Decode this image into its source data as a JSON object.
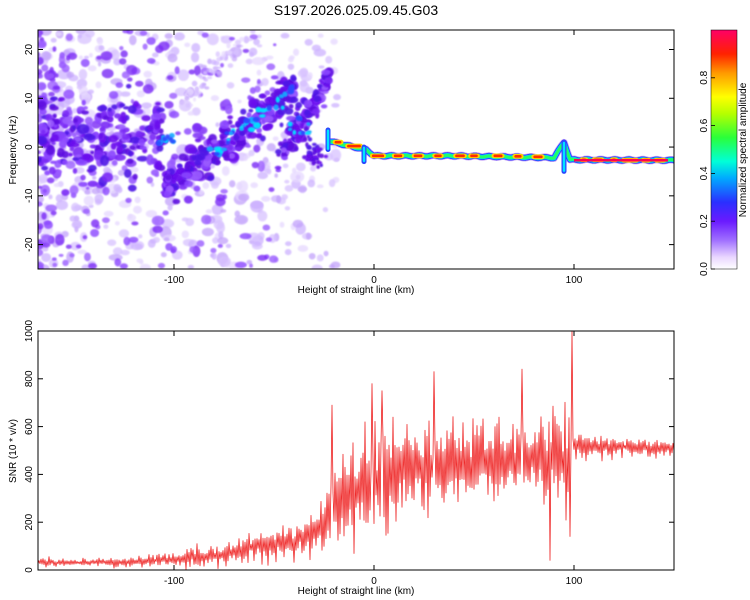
{
  "chart_data": [
    {
      "type": "heatmap",
      "title": "S197.2026.025.09.45.G03",
      "xlabel": "Height of straight line (km)",
      "ylabel": "Frequency (Hz)",
      "xlim": [
        -168,
        150
      ],
      "ylim": [
        -25,
        24
      ],
      "xticks": [
        -100,
        0,
        100
      ],
      "xtick_labels": [
        "-100",
        "0",
        "100"
      ],
      "yticks": [
        -20,
        -10,
        0,
        10,
        20
      ],
      "ytick_labels": [
        "-20",
        "-10",
        "0",
        "10",
        "20"
      ],
      "colorbar": {
        "label": "Normalized spectral amplitude",
        "range": [
          0,
          1
        ],
        "ticks": [
          0.0,
          0.2,
          0.4,
          0.6,
          0.8
        ],
        "tick_labels": [
          "0.0",
          "0.2",
          "0.4",
          "0.6",
          "0.8"
        ]
      },
      "ridge": {
        "description_points": [
          {
            "x": -22,
            "freq": 1.2
          },
          {
            "x": -10,
            "freq": 0.0
          },
          {
            "x": -4,
            "freq": -0.5
          },
          {
            "x": 0,
            "freq": -1.8
          },
          {
            "x": 10,
            "freq": -1.8
          },
          {
            "x": 40,
            "freq": -1.8
          },
          {
            "x": 90,
            "freq": -2.2
          },
          {
            "x": 95,
            "freq": 1.0
          },
          {
            "x": 98,
            "freq": -2.6
          },
          {
            "x": 148,
            "freq": -2.7
          }
        ]
      }
    },
    {
      "type": "line",
      "xlabel": "Height of straight line (km)",
      "ylabel": "SNR (10 * v/v)",
      "xlim": [
        -168,
        150
      ],
      "ylim": [
        0,
        1000
      ],
      "xticks": [
        -100,
        0,
        100
      ],
      "xtick_labels": [
        "-100",
        "0",
        "100"
      ],
      "yticks": [
        0,
        200,
        400,
        600,
        800,
        1000
      ],
      "ytick_labels": [
        "0",
        "200",
        "400",
        "600",
        "800",
        "1000"
      ],
      "series": [
        {
          "name": "SNR",
          "color": "#ee2222",
          "envelope": {
            "x": [
              -168,
              -150,
              -120,
              -100,
              -80,
              -60,
              -50,
              -40,
              -30,
              -22,
              -15,
              -10,
              -5,
              0,
              10,
              20,
              30,
              40,
              50,
              60,
              70,
              80,
              90,
              98,
              100,
              110,
              130,
              150
            ],
            "mean": [
              30,
              30,
              35,
              45,
              60,
              100,
              110,
              120,
              160,
              230,
              270,
              330,
              370,
              380,
              400,
              430,
              420,
              440,
              450,
              460,
              460,
              470,
              460,
              420,
              520,
              520,
              515,
              510
            ],
            "spread": [
              15,
              15,
              20,
              30,
              45,
              60,
              70,
              70,
              90,
              180,
              200,
              230,
              220,
              200,
              190,
              200,
              190,
              180,
              170,
              180,
              170,
              180,
              200,
              260,
              60,
              45,
              40,
              40
            ]
          },
          "peaks": [
            {
              "x": -21,
              "y": 690
            },
            {
              "x": -1,
              "y": 780
            },
            {
              "x": 4,
              "y": 750
            },
            {
              "x": 30,
              "y": 830
            },
            {
              "x": 74,
              "y": 840
            },
            {
              "x": 99,
              "y": 1000
            },
            {
              "x": 88,
              "y": 40
            },
            {
              "x": 98,
              "y": 140
            }
          ]
        }
      ]
    }
  ]
}
